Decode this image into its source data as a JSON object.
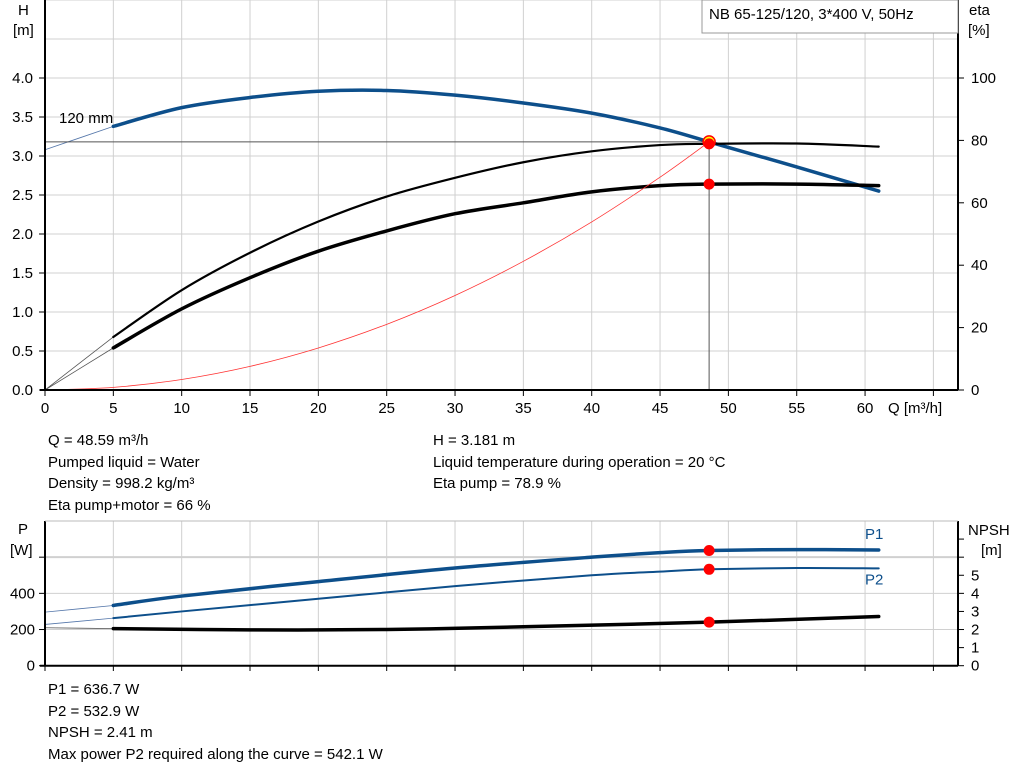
{
  "chart_data": [
    {
      "type": "line",
      "title": "NB 65-125/120, 3*400 V, 50Hz",
      "xlabel": "Q [m³/h]",
      "ylabel": "H [m]",
      "ylabel_left_name": "H",
      "ylabel_left_unit": "[m]",
      "ylabel_right_name": "eta",
      "ylabel_right_unit": "[%]",
      "xlim": [
        0,
        66.8
      ],
      "ylim": [
        0,
        5
      ],
      "ylim_right": [
        0,
        125
      ],
      "x_ticks": [
        "0",
        "5",
        "10",
        "15",
        "20",
        "25",
        "30",
        "35",
        "40",
        "45",
        "50",
        "55",
        "60"
      ],
      "y_ticks": [
        "0.0",
        "0.5",
        "1.0",
        "1.5",
        "2.0",
        "2.5",
        "3.0",
        "3.5",
        "4.0"
      ],
      "y_right_ticks": [
        "0",
        "20",
        "40",
        "60",
        "80",
        "100"
      ],
      "grid": true,
      "curve_label": "120 mm",
      "series": [
        {
          "id": "head",
          "axis": "left",
          "color": "#0d4f8b",
          "width": 3.5,
          "x": [
            5,
            10,
            15,
            20,
            25,
            30,
            35,
            40,
            45,
            48.59,
            50,
            55,
            61
          ],
          "y": [
            3.38,
            3.62,
            3.75,
            3.83,
            3.84,
            3.78,
            3.68,
            3.55,
            3.36,
            3.181,
            3.11,
            2.86,
            2.55
          ],
          "extension": {
            "x": [
              0,
              5
            ],
            "y": [
              3.08,
              3.38
            ]
          }
        },
        {
          "id": "eta-pump",
          "axis": "right",
          "color": "#000000",
          "width": 2.2,
          "x": [
            5,
            10,
            15,
            20,
            25,
            30,
            35,
            40,
            45,
            48.59,
            55,
            61
          ],
          "y": [
            17,
            32,
            44,
            54,
            62,
            68,
            73,
            76.5,
            78.5,
            78.9,
            79,
            78
          ],
          "extension": {
            "x": [
              0,
              5
            ],
            "y": [
              0,
              17
            ]
          }
        },
        {
          "id": "eta-pump-motor",
          "axis": "right",
          "color": "#000000",
          "width": 3.5,
          "x": [
            5,
            10,
            15,
            20,
            25,
            30,
            35,
            40,
            45,
            48.59,
            55,
            61
          ],
          "y": [
            13.5,
            26,
            36,
            44.5,
            51,
            56.5,
            60,
            63.5,
            65.5,
            66,
            66,
            65.5
          ],
          "extension": {
            "x": [
              0,
              5
            ],
            "y": [
              0,
              13.5
            ]
          }
        },
        {
          "id": "system-curve",
          "axis": "left",
          "color": "#ff3333",
          "width": 0.8,
          "x": [
            0,
            5,
            10,
            15,
            20,
            25,
            30,
            35,
            40,
            45,
            48.59
          ],
          "y": [
            0,
            0.034,
            0.135,
            0.303,
            0.539,
            0.842,
            1.212,
            1.65,
            2.155,
            2.728,
            3.181
          ]
        }
      ],
      "operating_point": {
        "Q": 48.59,
        "H": 3.181,
        "eta_pump": 78.9,
        "eta_pump_motor": 66
      }
    },
    {
      "type": "line",
      "xlabel": "",
      "ylabel_left_name": "P",
      "ylabel_left_unit": "[W]",
      "ylabel_right_name": "NPSH",
      "ylabel_right_unit": "[m]",
      "xlim": [
        0,
        66.8
      ],
      "ylim": [
        0,
        800
      ],
      "ylim_right": [
        0,
        8
      ],
      "y_ticks": [
        "0",
        "200",
        "400"
      ],
      "y_right_ticks": [
        "0",
        "1",
        "2",
        "3",
        "4",
        "5"
      ],
      "grid": true,
      "series": [
        {
          "id": "P1",
          "name": "P1",
          "axis": "left",
          "color": "#0d4f8b",
          "width": 3.5,
          "x": [
            5,
            10,
            20,
            30,
            40,
            45,
            48.59,
            55,
            61
          ],
          "y": [
            333,
            385,
            465,
            540,
            600,
            625,
            636.7,
            642,
            640
          ],
          "extension": {
            "x": [
              0,
              5
            ],
            "y": [
              296,
              333
            ]
          }
        },
        {
          "id": "P2",
          "name": "P2",
          "axis": "left",
          "color": "#0d4f8b",
          "width": 2,
          "x": [
            5,
            10,
            20,
            30,
            40,
            45,
            48.59,
            55,
            61
          ],
          "y": [
            263,
            300,
            370,
            440,
            500,
            520,
            532.9,
            540,
            538
          ],
          "extension": {
            "x": [
              0,
              5
            ],
            "y": [
              228,
              263
            ]
          }
        },
        {
          "id": "NPSH",
          "axis": "right",
          "color": "#000000",
          "width": 3.5,
          "x": [
            5,
            15,
            25,
            35,
            48.59,
            61
          ],
          "y": [
            2.05,
            1.98,
            2.0,
            2.15,
            2.41,
            2.72
          ],
          "extension": {
            "x": [
              0,
              5
            ],
            "y": [
              2.1,
              2.05
            ]
          }
        }
      ]
    }
  ],
  "results_top": {
    "left": [
      "Q = 48.59 m³/h",
      "Pumped liquid = Water",
      "Density = 998.2 kg/m³",
      "Eta pump+motor = 66 %"
    ],
    "right": [
      "H = 3.181 m",
      "Liquid temperature during operation = 20 °C",
      "Eta pump = 78.9 %"
    ]
  },
  "results_bottom": [
    "P1 = 636.7 W",
    "P2 = 532.9 W",
    "NPSH = 2.41 m",
    "Max power P2 required along the curve = 542.1 W"
  ],
  "colors": {
    "pump_blue": "#0d4f8b",
    "marker_red": "#ff0000",
    "marker_yellow": "#ffff00",
    "grid": "#d0d0d0"
  }
}
